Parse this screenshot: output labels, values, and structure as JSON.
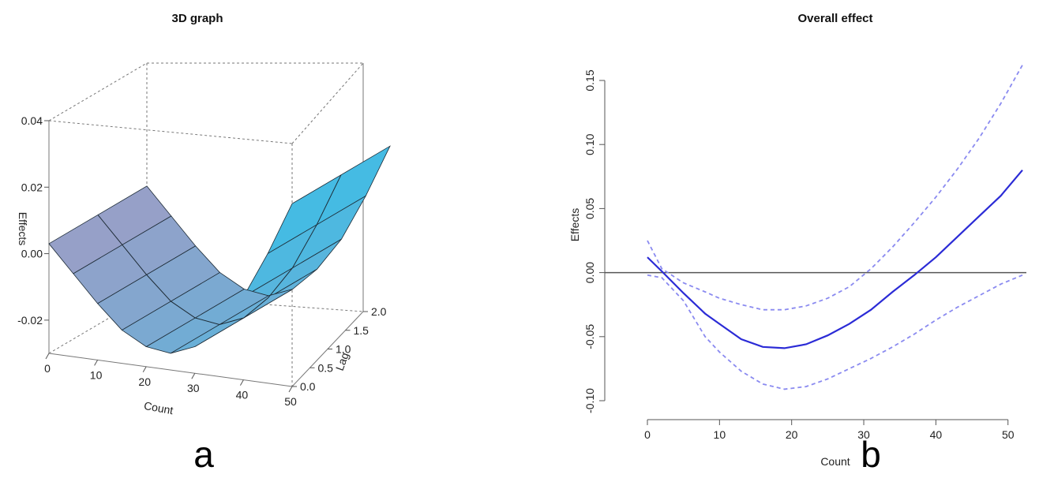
{
  "chart_data": [
    {
      "type": "surface3d",
      "panel_label": "a",
      "title": "3D graph",
      "xlabel": "Count",
      "ylabel": "Lag",
      "zlabel": "Effects",
      "x_ticks": [
        "0",
        "10",
        "20",
        "30",
        "40",
        "50"
      ],
      "y_ticks": [
        "0.0",
        "0.5",
        "1.0",
        "1.5",
        "2.0"
      ],
      "z_ticks": [
        "-0.02",
        "0.00",
        "0.02",
        "0.04"
      ],
      "xlim": [
        0,
        50
      ],
      "ylim": [
        0,
        2
      ],
      "zlim": [
        -0.03,
        0.04
      ],
      "surface_color": "#6aaed6",
      "series": [
        {
          "name": "",
          "x": [
            0,
            5,
            10,
            15,
            20,
            25,
            30,
            35,
            40,
            45,
            50
          ],
          "values": [
            0.003,
            -0.005,
            -0.013,
            -0.02,
            -0.024,
            -0.025,
            -0.022,
            -0.015,
            -0.005,
            0.009,
            0.025
          ]
        }
      ]
    },
    {
      "type": "line",
      "panel_label": "b",
      "title": "Overall effect",
      "xlabel": "Count",
      "ylabel": "Effects",
      "x_ticks": [
        "0",
        "10",
        "20",
        "30",
        "40",
        "50"
      ],
      "y_ticks": [
        "-0.10",
        "-0.05",
        "0.00",
        "0.05",
        "0.10",
        "0.15"
      ],
      "xlim": [
        0,
        52
      ],
      "ylim": [
        -0.1,
        0.15
      ],
      "reference_line": 0,
      "colors": {
        "main": "#2b2bd6",
        "ci": "#8a8af0",
        "ref": "#555555"
      },
      "series": [
        {
          "name": "",
          "x": [
            0,
            2,
            5,
            8,
            10,
            13,
            16,
            19,
            22,
            25,
            28,
            31,
            34,
            37,
            40,
            43,
            46,
            49,
            52
          ],
          "values": [
            0.012,
            0.001,
            -0.016,
            -0.032,
            -0.04,
            -0.052,
            -0.058,
            -0.059,
            -0.056,
            -0.049,
            -0.04,
            -0.029,
            -0.015,
            -0.002,
            0.012,
            0.028,
            0.044,
            0.06,
            0.08
          ]
        },
        {
          "name": "",
          "x": [
            0,
            2,
            5,
            8,
            10,
            13,
            16,
            19,
            22,
            25,
            28,
            31,
            34,
            37,
            40,
            43,
            46,
            49,
            52
          ],
          "values": [
            0.025,
            0.003,
            -0.008,
            -0.015,
            -0.02,
            -0.025,
            -0.029,
            -0.029,
            -0.026,
            -0.02,
            -0.011,
            0.003,
            0.02,
            0.039,
            0.059,
            0.081,
            0.105,
            0.132,
            0.162
          ]
        },
        {
          "name": "",
          "x": [
            0,
            2,
            5,
            8,
            10,
            13,
            16,
            19,
            22,
            25,
            28,
            31,
            34,
            37,
            40,
            43,
            46,
            49,
            52
          ],
          "values": [
            -0.002,
            -0.004,
            -0.022,
            -0.05,
            -0.062,
            -0.077,
            -0.087,
            -0.091,
            -0.089,
            -0.083,
            -0.075,
            -0.067,
            -0.058,
            -0.048,
            -0.037,
            -0.027,
            -0.018,
            -0.009,
            -0.002
          ]
        }
      ]
    }
  ]
}
